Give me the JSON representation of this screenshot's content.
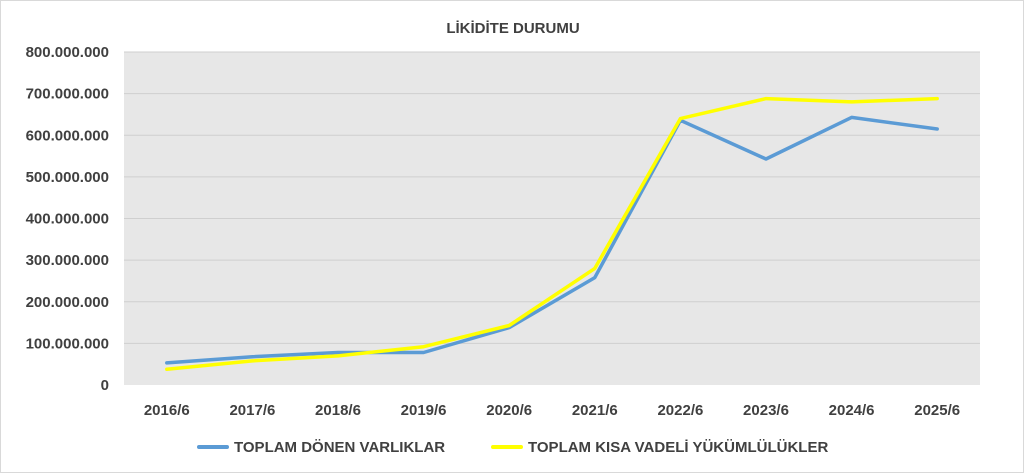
{
  "chart_data": {
    "type": "line",
    "title": "LİKİDİTE DURUMU",
    "xlabel": "",
    "ylabel": "",
    "categories": [
      "2016/6",
      "2017/6",
      "2018/6",
      "2019/6",
      "2020/6",
      "2021/6",
      "2022/6",
      "2023/6",
      "2024/6",
      "2025/6"
    ],
    "ylim": [
      0,
      800000000
    ],
    "y_ticks": [
      0,
      100000000,
      200000000,
      300000000,
      400000000,
      500000000,
      600000000,
      700000000,
      800000000
    ],
    "y_tick_labels": [
      "0",
      "100.000.000",
      "200.000.000",
      "300.000.000",
      "400.000.000",
      "500.000.000",
      "600.000.000",
      "700.000.000",
      "800.000.000"
    ],
    "grid": true,
    "legend_position": "bottom",
    "plot_background": "#e7e7e7",
    "series": [
      {
        "name": "TOPLAM DÖNEN VARLIKLAR",
        "color": "#5b9bd5",
        "values": [
          53000000,
          68000000,
          78000000,
          78000000,
          138000000,
          258000000,
          636000000,
          543000000,
          643000000,
          615000000
        ]
      },
      {
        "name": "TOPLAM KISA VADELİ YÜKÜMLÜLÜKLER",
        "color": "#ffff00",
        "values": [
          38000000,
          58000000,
          70000000,
          92000000,
          143000000,
          280000000,
          640000000,
          688000000,
          680000000,
          688000000
        ]
      }
    ]
  }
}
